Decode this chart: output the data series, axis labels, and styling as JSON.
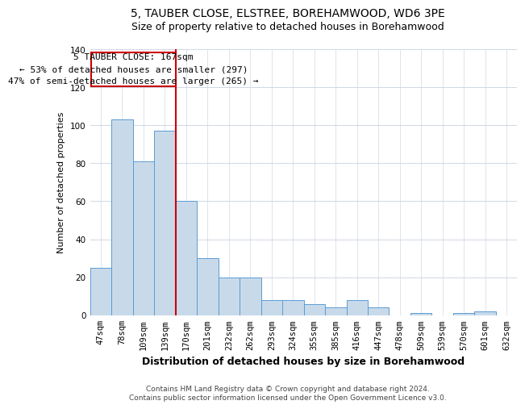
{
  "title": "5, TAUBER CLOSE, ELSTREE, BOREHAMWOOD, WD6 3PE",
  "subtitle": "Size of property relative to detached houses in Borehamwood",
  "xlabel": "Distribution of detached houses by size in Borehamwood",
  "ylabel": "Number of detached properties",
  "bar_values": [
    25,
    103,
    81,
    97,
    60,
    30,
    20,
    20,
    8,
    8,
    6,
    4,
    8,
    4,
    0,
    1,
    0,
    1,
    2,
    0
  ],
  "bar_labels": [
    "47sqm",
    "78sqm",
    "109sqm",
    "139sqm",
    "170sqm",
    "201sqm",
    "232sqm",
    "262sqm",
    "293sqm",
    "324sqm",
    "355sqm",
    "385sqm",
    "416sqm",
    "447sqm",
    "478sqm",
    "509sqm",
    "539sqm",
    "570sqm",
    "601sqm",
    "632sqm"
  ],
  "bar_color": "#c8daea",
  "bar_edge_color": "#5b9bd5",
  "vline_color": "#cc0000",
  "annotation_line1": "5 TAUBER CLOSE: 167sqm",
  "annotation_line2": "← 53% of detached houses are smaller (297)",
  "annotation_line3": "47% of semi-detached houses are larger (265) →",
  "annotation_box_color": "#ffffff",
  "annotation_box_edge": "#cc0000",
  "ylim": [
    0,
    140
  ],
  "yticks": [
    0,
    20,
    40,
    60,
    80,
    100,
    120,
    140
  ],
  "footer": "Contains HM Land Registry data © Crown copyright and database right 2024.\nContains public sector information licensed under the Open Government Licence v3.0.",
  "title_fontsize": 10,
  "subtitle_fontsize": 9,
  "xlabel_fontsize": 9,
  "ylabel_fontsize": 8,
  "tick_fontsize": 7.5,
  "annotation_fontsize": 8,
  "footer_fontsize": 6.5,
  "background_color": "#ffffff",
  "grid_color": "#d0d8e4"
}
